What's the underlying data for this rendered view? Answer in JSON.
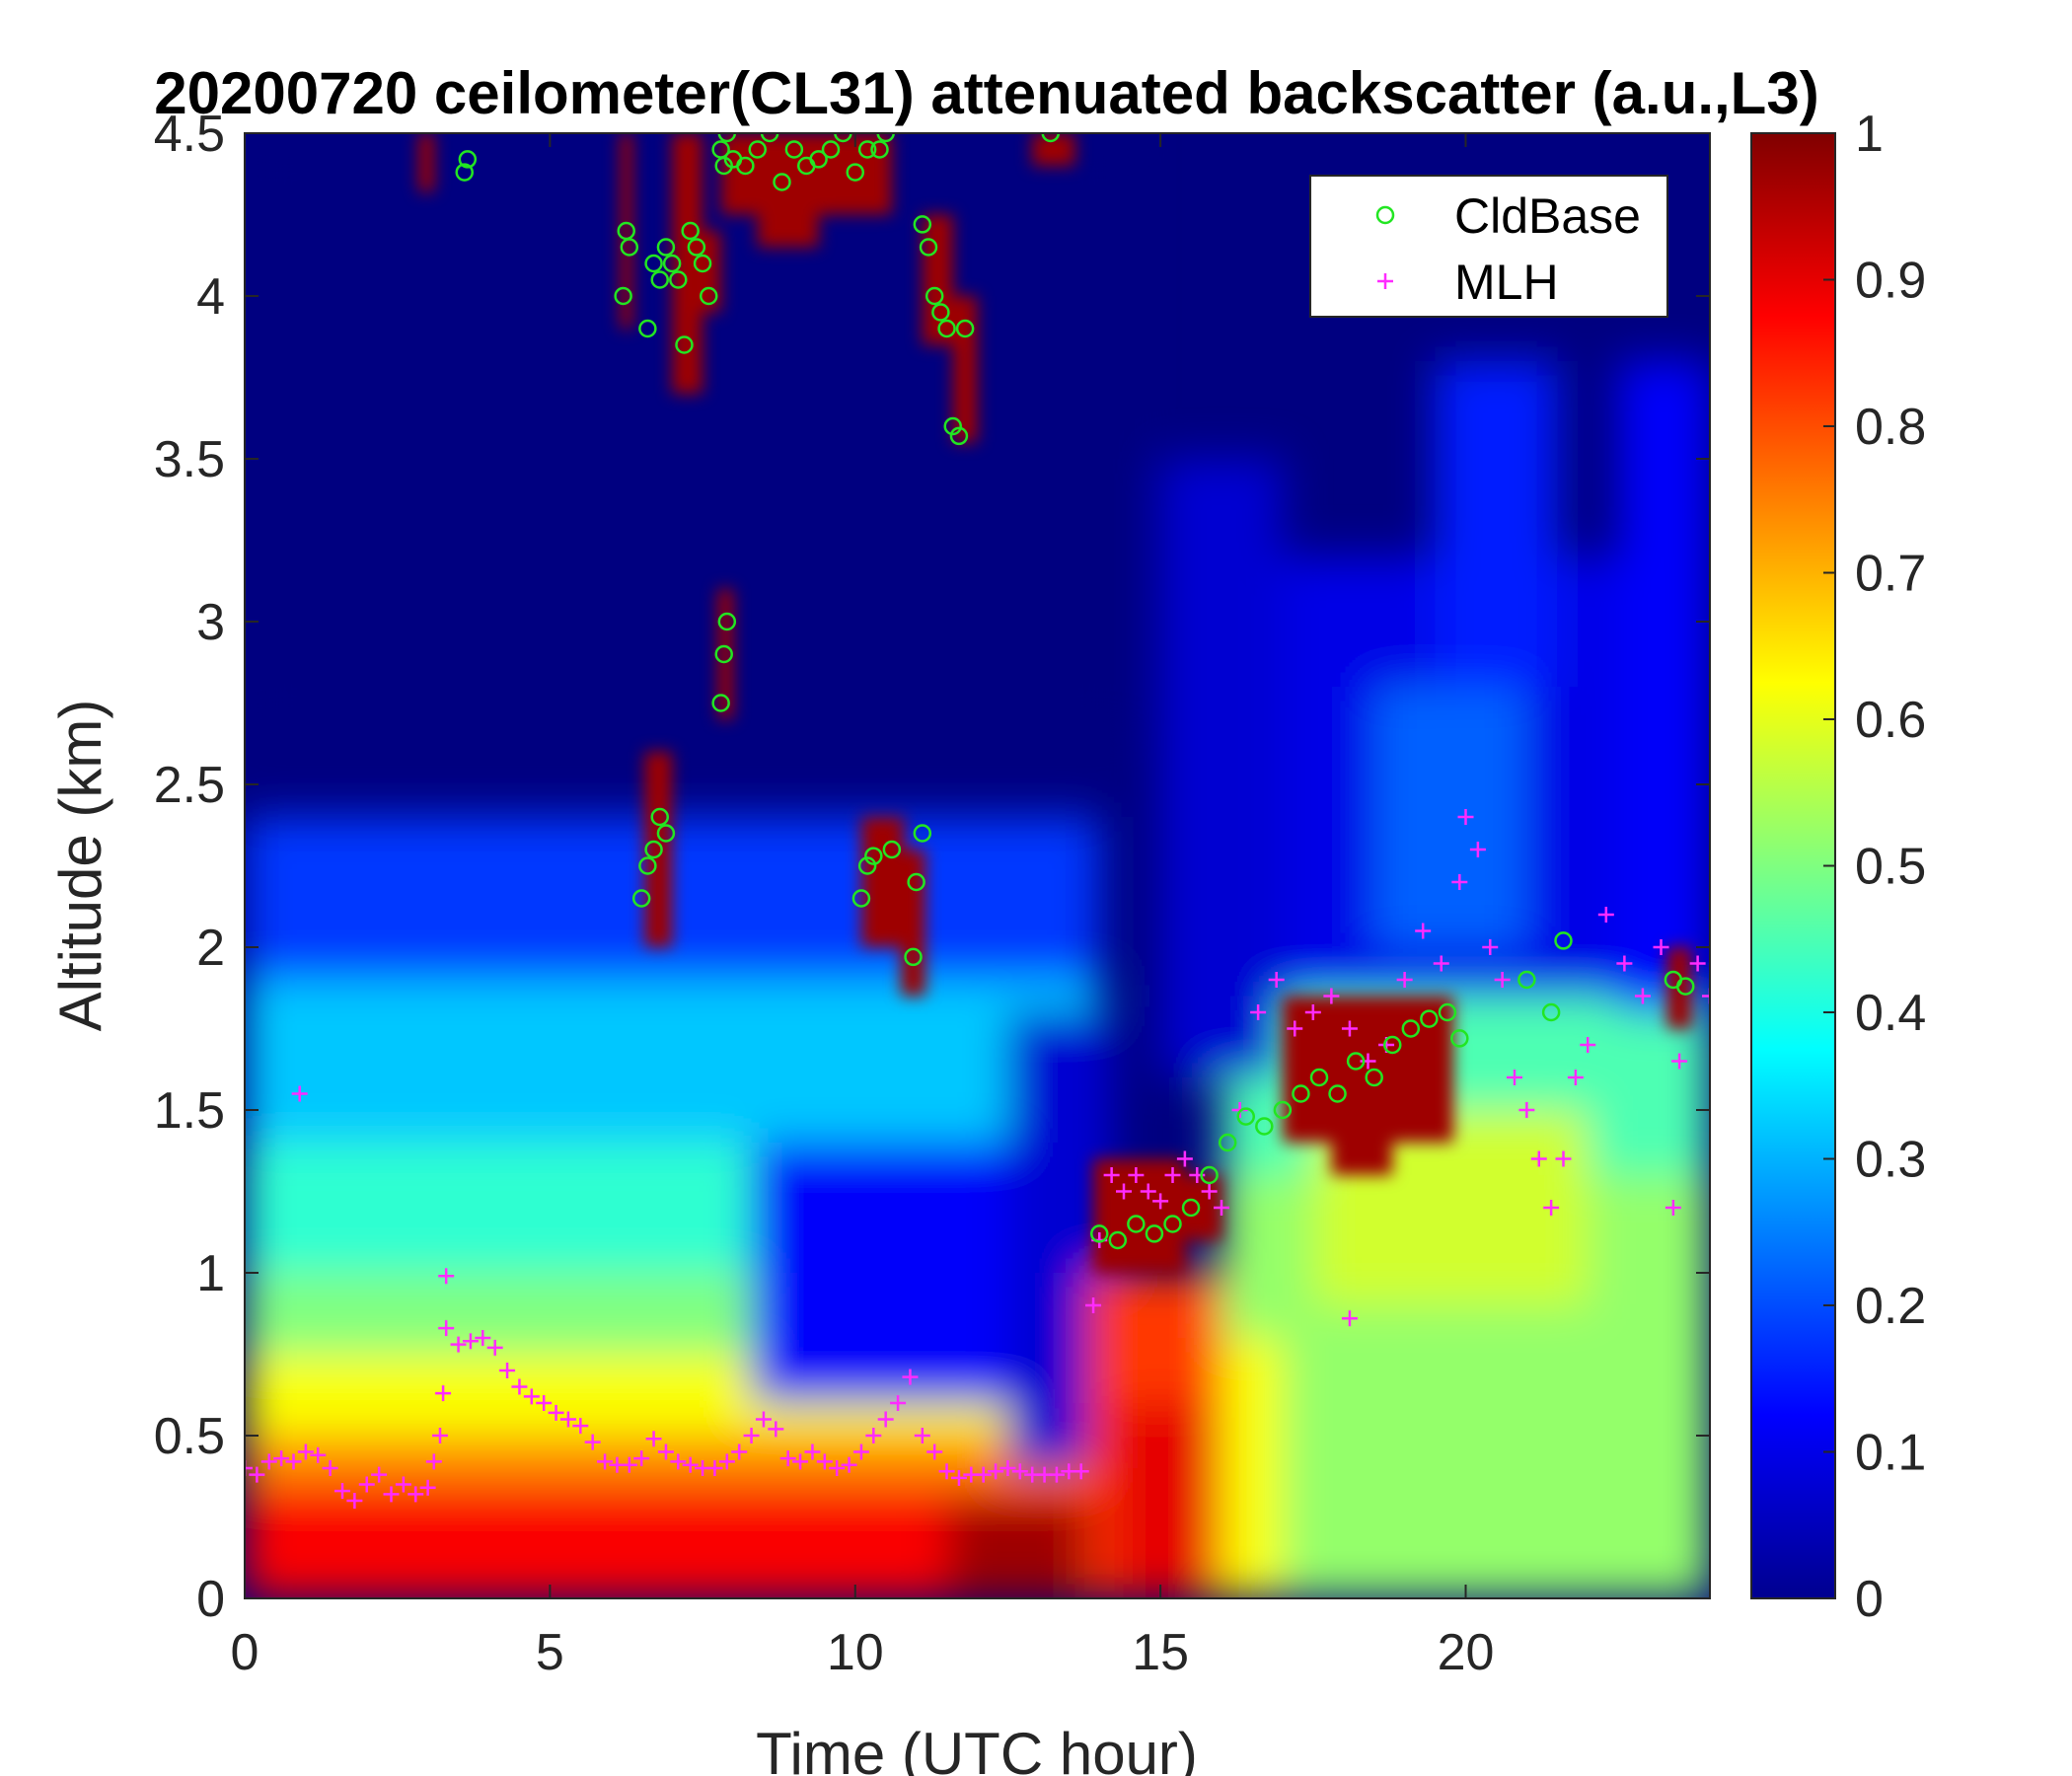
{
  "chart_data": {
    "type": "heatmap",
    "title": "20200720 ceilometer(CL31) attenuated backscatter (a.u.,L3)",
    "xlabel": "Time (UTC hour)",
    "ylabel": "Altitude (km)",
    "xlim": [
      0,
      24
    ],
    "ylim": [
      0,
      4.5
    ],
    "xticks": [
      "0",
      "5",
      "10",
      "15",
      "20"
    ],
    "yticks": [
      "0",
      "0.5",
      "1",
      "1.5",
      "2",
      "2.5",
      "3",
      "3.5",
      "4",
      "4.5"
    ],
    "colorbar": {
      "colormap": "jet",
      "range": [
        0,
        1
      ],
      "ticks": [
        "0",
        "0.1",
        "0.2",
        "0.3",
        "0.4",
        "0.5",
        "0.6",
        "0.7",
        "0.8",
        "0.9",
        "1"
      ]
    },
    "legend": {
      "position": "top-right",
      "entries": [
        "CldBase",
        "MLH"
      ]
    },
    "colors": {
      "cldbase": "#22e622",
      "mlh": "#ff2bff"
    },
    "series": [
      {
        "name": "MLH",
        "marker": "plus",
        "x": [
          0,
          0.2,
          0.4,
          0.6,
          0.8,
          1.0,
          1.2,
          1.4,
          1.6,
          1.8,
          2.0,
          2.2,
          2.4,
          2.6,
          2.8,
          3.0,
          3.1,
          3.2,
          3.25,
          3.3,
          3.5,
          3.7,
          3.9,
          4.1,
          4.3,
          4.5,
          4.7,
          4.9,
          5.1,
          5.3,
          5.5,
          5.7,
          5.9,
          6.1,
          6.3,
          6.5,
          6.7,
          6.9,
          7.1,
          7.3,
          7.5,
          7.7,
          7.9,
          8.1,
          8.3,
          8.5,
          8.7,
          8.9,
          9.1,
          9.3,
          9.5,
          9.7,
          9.9,
          10.1,
          10.3,
          10.5,
          10.7,
          10.9,
          11.1,
          11.3,
          11.5,
          11.7,
          11.9,
          12.1,
          12.3,
          12.5,
          12.7,
          12.9,
          13.1,
          13.3,
          13.5,
          13.7,
          13.9,
          14.0,
          14.2,
          14.4,
          14.6,
          14.8,
          15.0,
          15.2,
          15.4,
          15.6,
          15.8,
          16.0,
          16.3,
          16.6,
          16.9,
          17.2,
          17.5,
          17.8,
          18.1,
          18.4,
          18.7,
          19.0,
          19.3,
          19.6,
          19.9,
          20.0,
          20.2,
          20.4,
          20.6,
          20.8,
          21.0,
          21.2,
          21.4,
          21.6,
          21.8,
          22.0,
          22.3,
          22.6,
          22.9,
          23.2,
          23.5,
          23.8,
          24.0,
          0.9,
          3.3,
          18.1,
          23.4
        ],
        "y": [
          0.4,
          0.38,
          0.42,
          0.43,
          0.42,
          0.45,
          0.44,
          0.4,
          0.33,
          0.3,
          0.35,
          0.38,
          0.32,
          0.35,
          0.32,
          0.34,
          0.42,
          0.5,
          0.63,
          0.83,
          0.78,
          0.79,
          0.8,
          0.77,
          0.7,
          0.65,
          0.62,
          0.6,
          0.57,
          0.55,
          0.53,
          0.48,
          0.42,
          0.41,
          0.41,
          0.43,
          0.49,
          0.45,
          0.42,
          0.41,
          0.4,
          0.4,
          0.42,
          0.45,
          0.5,
          0.55,
          0.52,
          0.43,
          0.42,
          0.45,
          0.42,
          0.4,
          0.41,
          0.45,
          0.5,
          0.55,
          0.6,
          0.68,
          0.5,
          0.45,
          0.39,
          0.37,
          0.38,
          0.38,
          0.39,
          0.4,
          0.39,
          0.38,
          0.38,
          0.38,
          0.39,
          0.39,
          0.9,
          1.1,
          1.3,
          1.25,
          1.3,
          1.25,
          1.22,
          1.3,
          1.35,
          1.3,
          1.25,
          1.2,
          1.5,
          1.8,
          1.9,
          1.75,
          1.8,
          1.85,
          1.75,
          1.65,
          1.7,
          1.9,
          2.05,
          1.95,
          2.2,
          2.4,
          2.3,
          2.0,
          1.9,
          1.6,
          1.5,
          1.35,
          1.2,
          1.35,
          1.6,
          1.7,
          2.1,
          1.95,
          1.85,
          2.0,
          1.65,
          1.95,
          1.85,
          1.55,
          0.99,
          0.86,
          1.2
        ],
        "_note_x_units": "hours"
      },
      {
        "name": "CldBase",
        "marker": "circle",
        "x": [
          3.6,
          3.65,
          6.2,
          6.25,
          6.3,
          6.6,
          6.7,
          6.8,
          6.9,
          7.0,
          7.1,
          7.2,
          7.3,
          7.4,
          7.5,
          7.6,
          7.8,
          7.85,
          7.9,
          8.0,
          8.2,
          8.4,
          8.6,
          8.8,
          9.0,
          9.2,
          9.4,
          9.6,
          9.8,
          10.0,
          10.2,
          10.4,
          10.5,
          11.1,
          11.2,
          11.3,
          11.4,
          11.5,
          11.6,
          11.7,
          11.8,
          6.5,
          6.6,
          6.7,
          6.8,
          6.9,
          7.8,
          7.85,
          7.9,
          10.1,
          10.2,
          10.3,
          10.6,
          10.95,
          11.0,
          11.1,
          13.2,
          14.0,
          14.3,
          14.6,
          14.9,
          15.2,
          15.5,
          15.8,
          16.1,
          16.4,
          16.7,
          17.0,
          17.3,
          17.6,
          17.9,
          18.2,
          18.5,
          18.8,
          19.1,
          19.4,
          19.7,
          19.9,
          21.0,
          21.4,
          21.6,
          23.4,
          23.6
        ],
        "y": [
          4.38,
          4.42,
          4.0,
          4.2,
          4.15,
          3.9,
          4.1,
          4.05,
          4.15,
          4.1,
          4.05,
          3.85,
          4.2,
          4.15,
          4.1,
          4.0,
          4.45,
          4.4,
          4.5,
          4.42,
          4.4,
          4.45,
          4.5,
          4.35,
          4.45,
          4.4,
          4.42,
          4.45,
          4.5,
          4.38,
          4.45,
          4.45,
          4.5,
          4.22,
          4.15,
          4.0,
          3.95,
          3.9,
          3.6,
          3.57,
          3.9,
          2.15,
          2.25,
          2.3,
          2.4,
          2.35,
          2.75,
          2.9,
          3.0,
          2.15,
          2.25,
          2.28,
          2.3,
          1.97,
          2.2,
          2.35,
          4.5,
          1.12,
          1.1,
          1.15,
          1.12,
          1.15,
          1.2,
          1.3,
          1.4,
          1.48,
          1.45,
          1.5,
          1.55,
          1.6,
          1.55,
          1.65,
          1.6,
          1.7,
          1.75,
          1.78,
          1.8,
          1.72,
          1.9,
          1.8,
          2.02,
          1.9,
          1.88
        ],
        "_note_x_units": "hours"
      }
    ]
  }
}
